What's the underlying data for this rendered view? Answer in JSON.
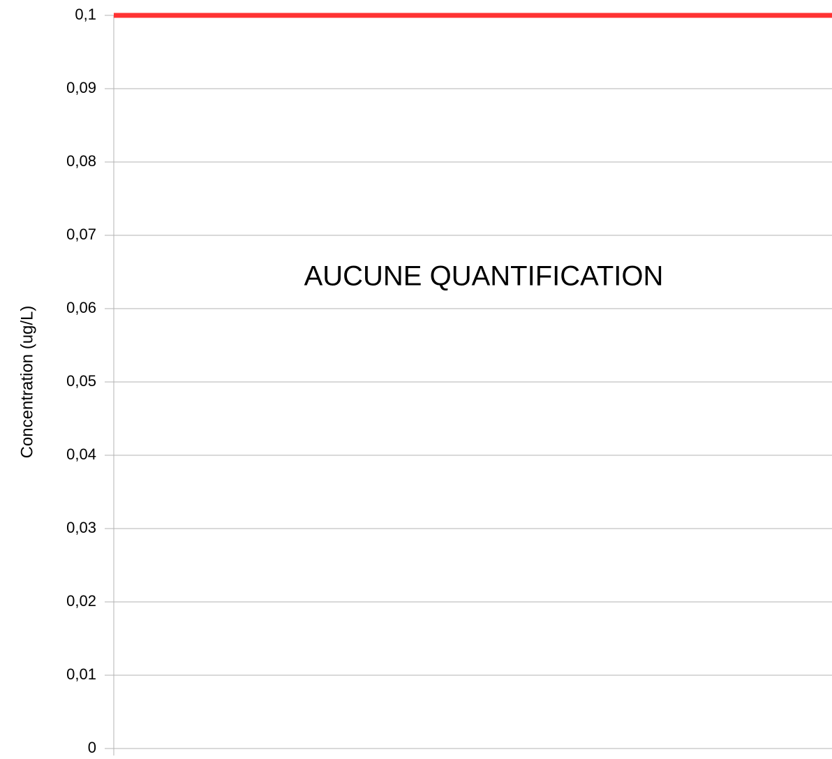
{
  "chart_data": {
    "type": "line",
    "y_label": "Concentration (ug/L)",
    "annotation": "AUCUNE QUANTIFICATION",
    "categories": [
      null,
      null
    ],
    "series": [
      {
        "color": "#ff3333",
        "values": [
          0.1,
          0.1
        ]
      }
    ],
    "ylim": [
      0,
      0.1
    ],
    "yticks": [
      0,
      {
        "value": 0.01,
        "label": "0,01"
      },
      {
        "value": 0.02,
        "label": "0,02"
      },
      {
        "value": 0.03,
        "label": "0,03"
      },
      {
        "value": 0.04,
        "label": "0,04"
      },
      {
        "value": 0.05,
        "label": "0,05"
      },
      {
        "value": 0.06,
        "label": "0,06"
      },
      {
        "value": 0.07,
        "label": "0,07"
      },
      {
        "value": 0.08,
        "label": "0,08"
      },
      {
        "value": 0.09,
        "label": "0,09"
      },
      {
        "value": 0.1,
        "label": "0,1"
      }
    ],
    "grid": true
  }
}
